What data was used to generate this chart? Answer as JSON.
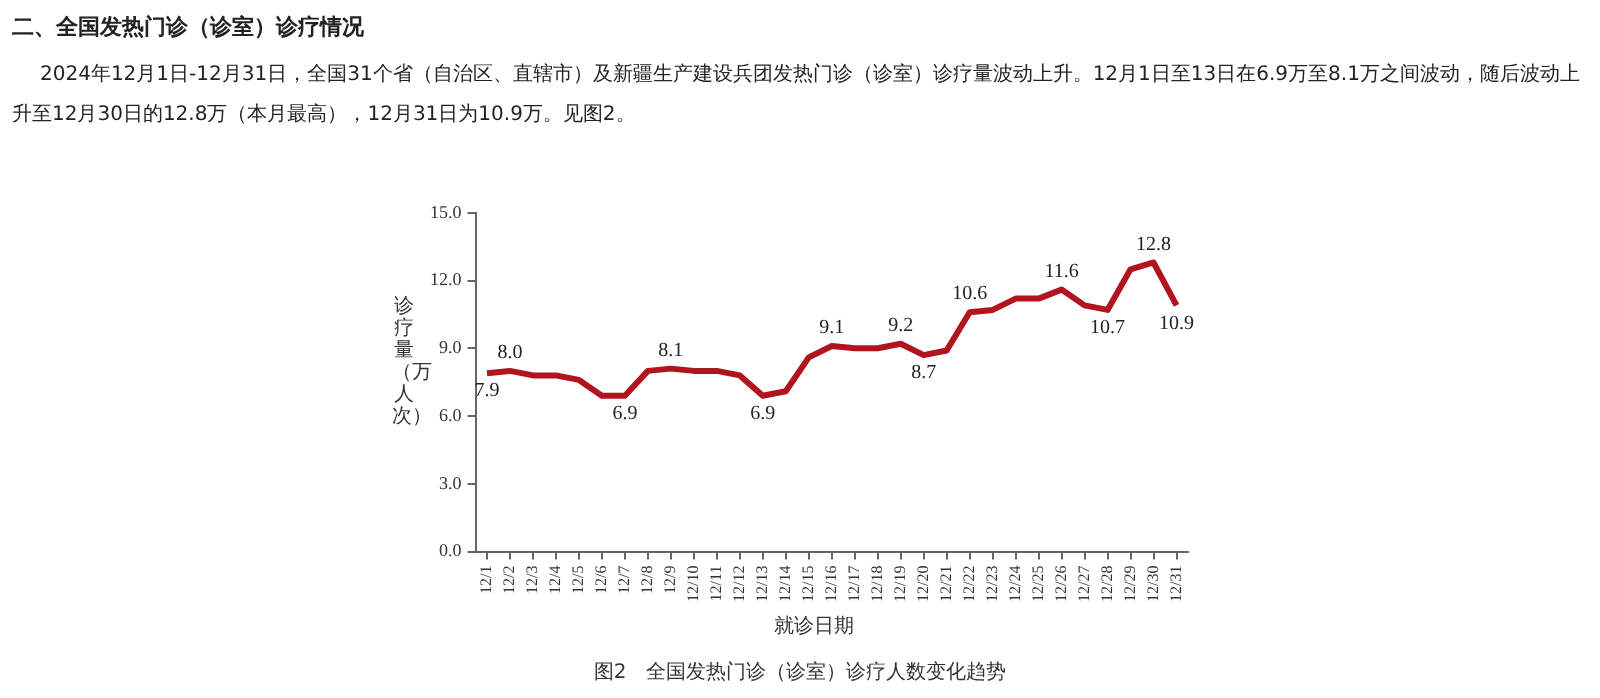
{
  "chart_data": {
    "type": "line",
    "title": "二、全国发热门诊（诊室）诊疗情况",
    "subtitle": "2024年12月1日-12月31日，全国31个省（自治区、直辖市）及新疆生产建设兵团发热门诊（诊室）诊疗量波动上升。12月1日至13日在6.9万至8.1万之间波动，随后波动上升至12月30日的12.8万（本月最高），12月31日为10.9万。见图2。",
    "annotations": [
      "图2　全国发热门诊（诊室）诊疗人数变化趋势"
    ],
    "xlabel": "就诊日期",
    "ylabel": "诊疗量（万人次）",
    "categories": [
      "12/1",
      "12/2",
      "12/3",
      "12/4",
      "12/5",
      "12/6",
      "12/7",
      "12/8",
      "12/9",
      "12/10",
      "12/11",
      "12/12",
      "12/13",
      "12/14",
      "12/15",
      "12/16",
      "12/17",
      "12/18",
      "12/19",
      "12/20",
      "12/21",
      "12/22",
      "12/23",
      "12/24",
      "12/25",
      "12/26",
      "12/27",
      "12/28",
      "12/29",
      "12/30",
      "12/31"
    ],
    "series": [
      {
        "color": "#b0141c",
        "values": [
          7.9,
          8.0,
          7.8,
          7.8,
          7.6,
          6.9,
          6.9,
          8.0,
          8.1,
          8.0,
          8.0,
          7.8,
          6.9,
          7.1,
          8.6,
          9.1,
          9.0,
          9.0,
          9.2,
          8.7,
          8.9,
          10.6,
          10.7,
          11.2,
          11.2,
          11.6,
          10.9,
          10.7,
          12.5,
          12.8,
          10.9
        ],
        "value_labels": [
          "7.9",
          "8.0",
          null,
          null,
          null,
          null,
          "6.9",
          null,
          "8.1",
          null,
          null,
          null,
          "6.9",
          null,
          null,
          "9.1",
          null,
          null,
          "9.2",
          "8.7",
          null,
          "10.6",
          null,
          null,
          null,
          "11.6",
          null,
          "10.7",
          null,
          "12.8",
          "10.9"
        ]
      }
    ],
    "ylim": [
      0,
      15
    ],
    "yticks": [
      {
        "value": 0,
        "label": "0.0"
      },
      {
        "value": 3,
        "label": "3.0"
      },
      {
        "value": 6,
        "label": "6.0"
      },
      {
        "value": 9,
        "label": "9.0"
      },
      {
        "value": 12,
        "label": "12.0"
      },
      {
        "value": 15,
        "label": "15.0"
      }
    ]
  }
}
